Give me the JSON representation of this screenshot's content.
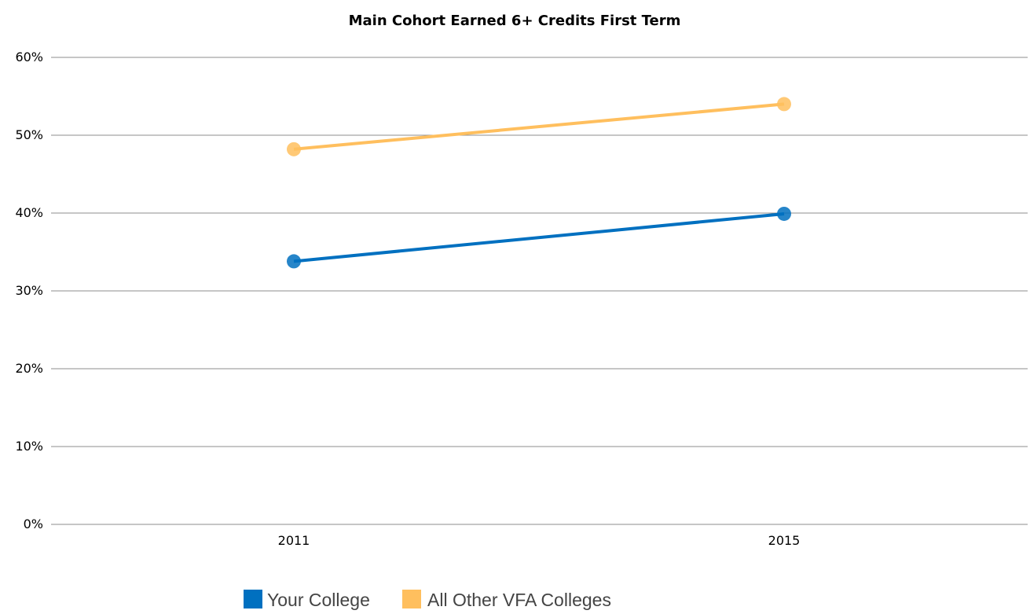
{
  "chart_data": {
    "type": "line",
    "title": "Main Cohort Earned 6+ Credits First Term",
    "xlabel": "",
    "ylabel": "",
    "categories": [
      "2011",
      "2015"
    ],
    "ylim": [
      0,
      60
    ],
    "y_ticks": [
      0,
      10,
      20,
      30,
      40,
      50,
      60
    ],
    "y_tick_format": "percent",
    "grid": true,
    "legend_position": "bottom",
    "series": [
      {
        "name": "Your College",
        "values": [
          33.8,
          39.9
        ],
        "color": "#0070c0"
      },
      {
        "name": "All Other VFA Colleges",
        "values": [
          48.2,
          54.0
        ],
        "color": "#ffbf5e"
      }
    ]
  }
}
